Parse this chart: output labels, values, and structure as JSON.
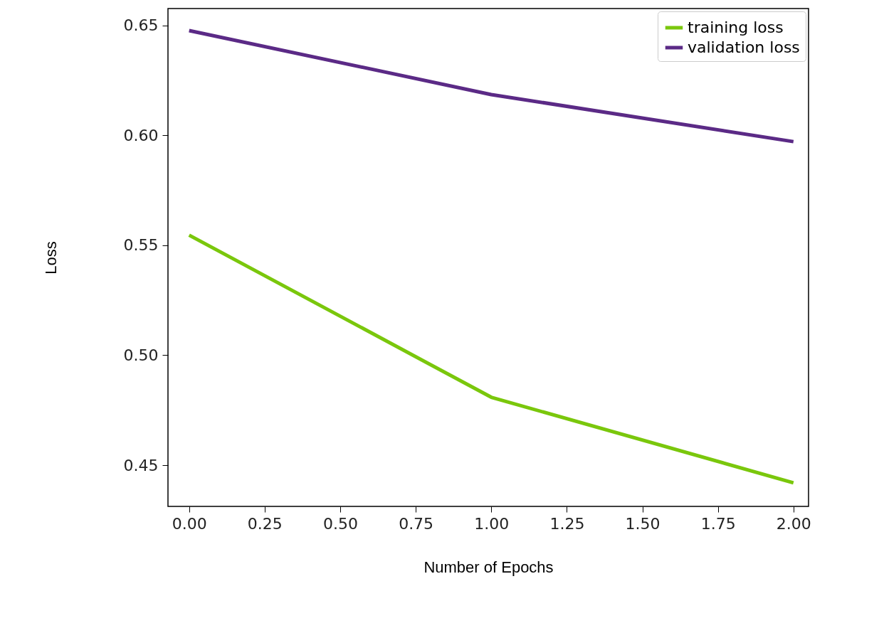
{
  "chart_data": {
    "type": "line",
    "xlabel": "Number of Epochs",
    "ylabel": "Loss",
    "x": [
      0,
      1,
      2
    ],
    "series": [
      {
        "name": "training loss",
        "color": "#7ac70c",
        "values": [
          0.5546,
          0.4809,
          0.442
        ]
      },
      {
        "name": "validation loss",
        "color": "#5b2a86",
        "values": [
          0.6476,
          0.6185,
          0.5971
        ]
      }
    ],
    "xlim": [
      -0.07,
      2.05
    ],
    "xticks": [
      {
        "value": 0,
        "label": "0.00"
      },
      {
        "value": 0.25,
        "label": "0.25"
      },
      {
        "value": 0.5,
        "label": "0.50"
      },
      {
        "value": 0.75,
        "label": "0.75"
      },
      {
        "value": 1,
        "label": "1.00"
      },
      {
        "value": 1.25,
        "label": "1.25"
      },
      {
        "value": 1.5,
        "label": "1.50"
      },
      {
        "value": 1.75,
        "label": "1.75"
      },
      {
        "value": 2,
        "label": "2.00"
      }
    ],
    "ylim": [
      0.4313,
      0.6576
    ],
    "yticks": [
      {
        "value": 0.45,
        "label": "0.45"
      },
      {
        "value": 0.5,
        "label": "0.50"
      },
      {
        "value": 0.55,
        "label": "0.55"
      },
      {
        "value": 0.6,
        "label": "0.60"
      },
      {
        "value": 0.65,
        "label": "0.65"
      }
    ],
    "grid": false,
    "legend": "top right",
    "marker": "none",
    "line_style": "solid"
  }
}
